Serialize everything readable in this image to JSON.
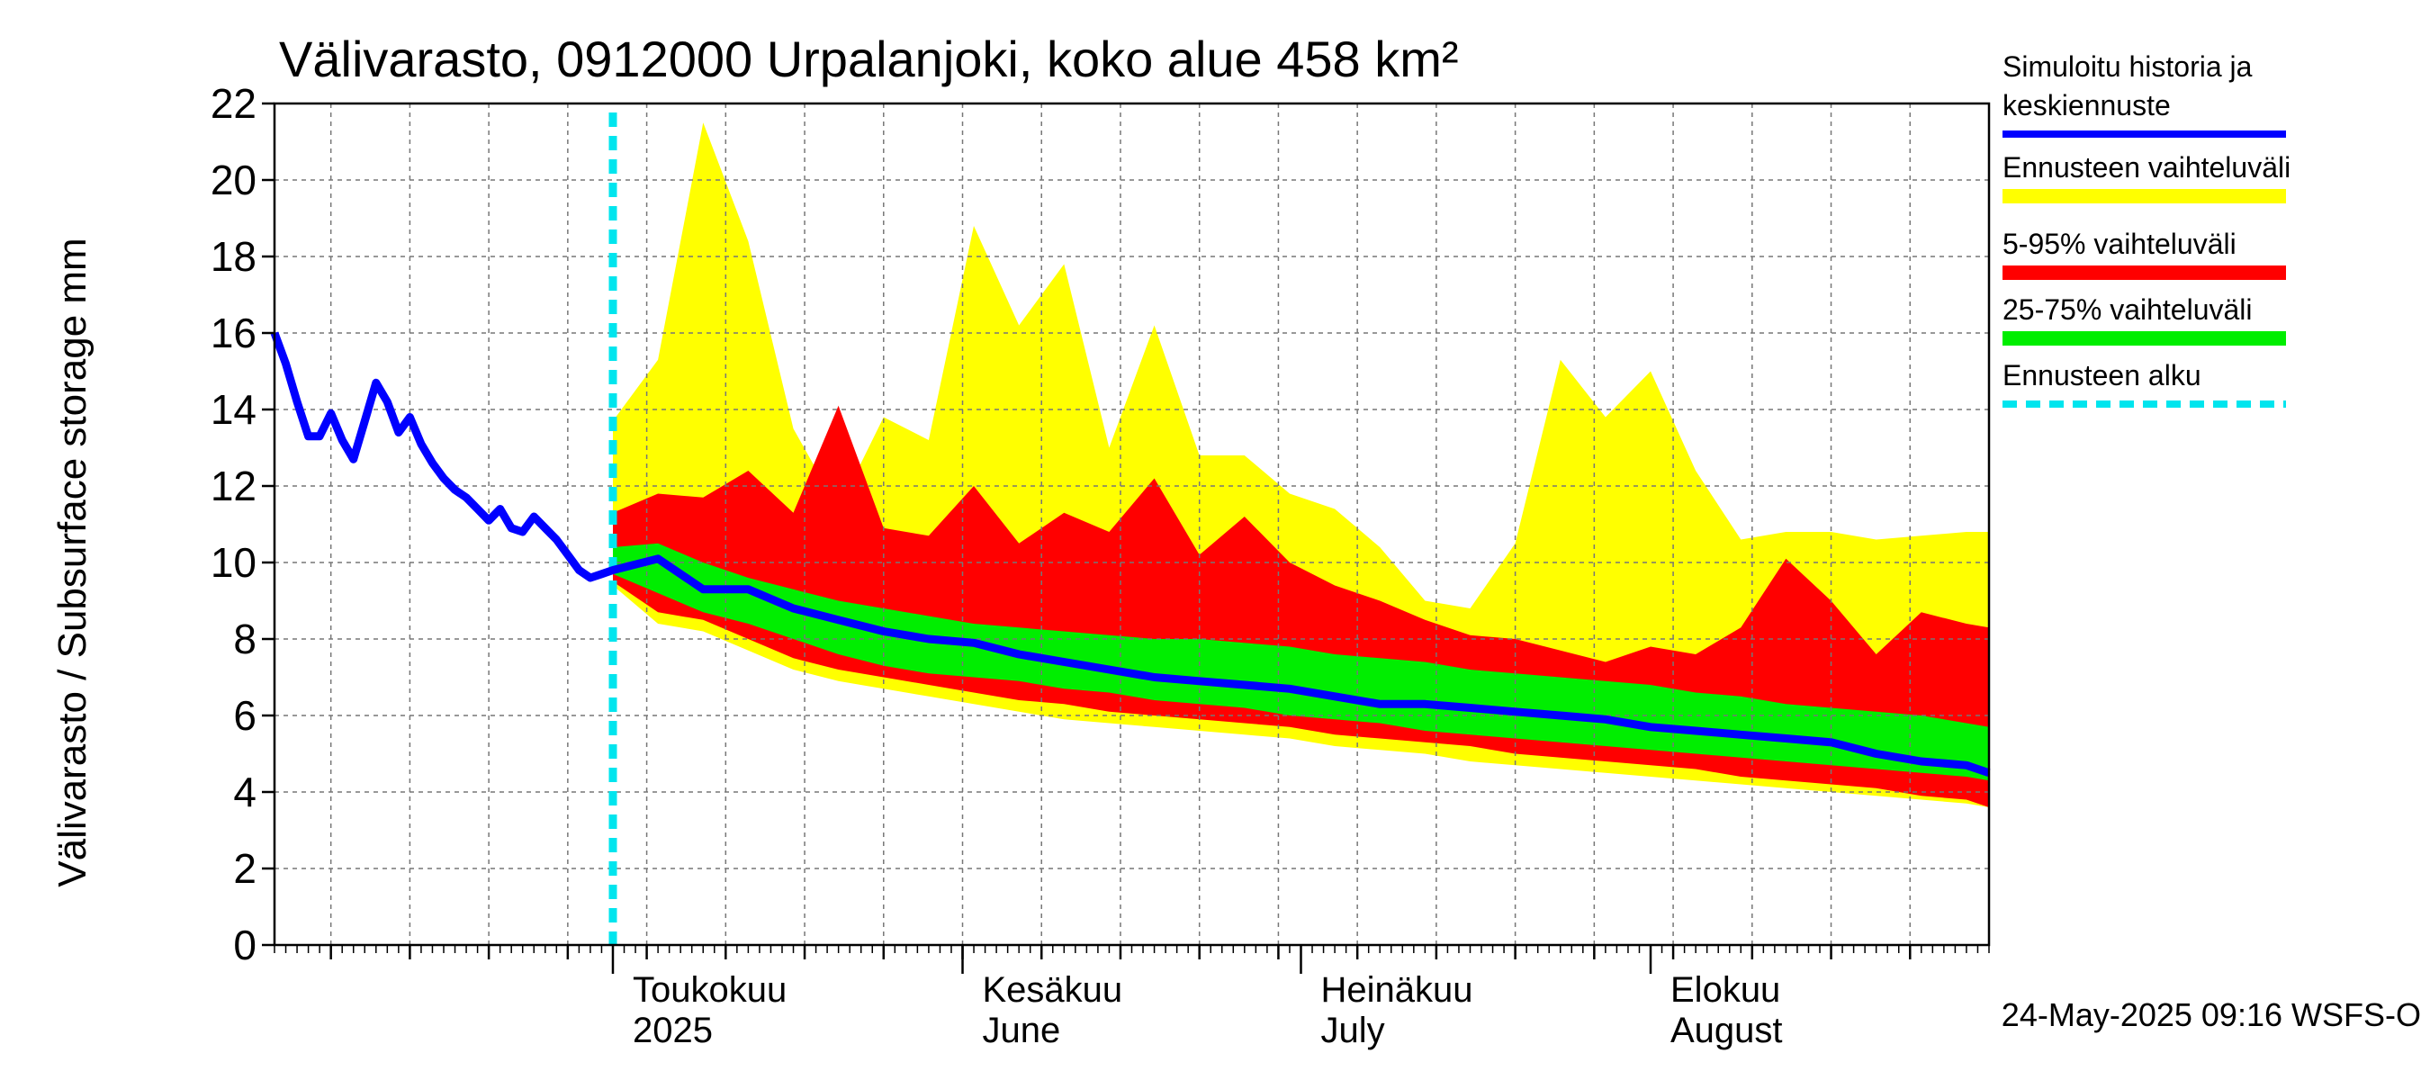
{
  "chart_data": {
    "type": "area",
    "title": "Välivarasto, 0912000 Urpalanjoki, koko alue 458 km²",
    "ylabel": "Välivarasto / Subsurface storage  mm",
    "ylim": [
      0,
      22
    ],
    "yticks": [
      0,
      2,
      4,
      6,
      8,
      10,
      12,
      14,
      16,
      18,
      20,
      22
    ],
    "xlim": [
      "2025-04-01",
      "2025-08-31"
    ],
    "grid": true,
    "months": [
      {
        "label": "Toukokuu",
        "label2": "2025",
        "start": "2025-05-01"
      },
      {
        "label": "Kesäkuu",
        "label2": "June",
        "start": "2025-06-01"
      },
      {
        "label": "Heinäkuu",
        "label2": "July",
        "start": "2025-07-01"
      },
      {
        "label": "Elokuu",
        "label2": "August",
        "start": "2025-08-01"
      }
    ],
    "forecast_start": "2025-05-01",
    "legend": {
      "placement": "right",
      "entries": [
        {
          "label": [
            "Simuloitu historia ja",
            "keskiennuste"
          ],
          "color": "#0000ff",
          "style": "line"
        },
        {
          "label": [
            "Ennusteen vaihteluväli"
          ],
          "color": "#ffff00",
          "style": "band"
        },
        {
          "label": [
            "5-95% vaihteluväli"
          ],
          "color": "#ff0000",
          "style": "band"
        },
        {
          "label": [
            "25-75% vaihteluväli"
          ],
          "color": "#00ee00",
          "style": "band"
        },
        {
          "label": [
            "Ennusteen alku"
          ],
          "color": "#00e5ee",
          "style": "dashed"
        }
      ]
    },
    "history": {
      "name": "Simuloitu historia ja keskiennuste",
      "x": [
        "2025-04-01",
        "2025-04-02",
        "2025-04-03",
        "2025-04-04",
        "2025-04-05",
        "2025-04-06",
        "2025-04-07",
        "2025-04-08",
        "2025-04-09",
        "2025-04-10",
        "2025-04-11",
        "2025-04-12",
        "2025-04-13",
        "2025-04-14",
        "2025-04-15",
        "2025-04-16",
        "2025-04-17",
        "2025-04-18",
        "2025-04-19",
        "2025-04-20",
        "2025-04-21",
        "2025-04-22",
        "2025-04-23",
        "2025-04-24",
        "2025-04-25",
        "2025-04-26",
        "2025-04-27",
        "2025-04-28",
        "2025-04-29",
        "2025-04-30",
        "2025-05-01"
      ],
      "y": [
        16.0,
        15.2,
        14.2,
        13.3,
        13.3,
        13.9,
        13.2,
        12.7,
        13.7,
        14.7,
        14.2,
        13.4,
        13.8,
        13.1,
        12.6,
        12.2,
        11.9,
        11.7,
        11.4,
        11.1,
        11.4,
        10.9,
        10.8,
        11.2,
        10.9,
        10.6,
        10.2,
        9.8,
        9.6,
        9.7,
        9.8
      ]
    },
    "forecast": {
      "x": [
        "2025-05-01",
        "2025-05-05",
        "2025-05-09",
        "2025-05-13",
        "2025-05-17",
        "2025-05-21",
        "2025-05-25",
        "2025-05-29",
        "2025-06-02",
        "2025-06-06",
        "2025-06-10",
        "2025-06-14",
        "2025-06-18",
        "2025-06-22",
        "2025-06-26",
        "2025-06-30",
        "2025-07-04",
        "2025-07-08",
        "2025-07-12",
        "2025-07-16",
        "2025-07-20",
        "2025-07-24",
        "2025-07-28",
        "2025-08-01",
        "2025-08-05",
        "2025-08-09",
        "2025-08-13",
        "2025-08-17",
        "2025-08-21",
        "2025-08-25",
        "2025-08-29",
        "2025-08-31"
      ],
      "median": [
        10.0,
        10.1,
        9.3,
        9.3,
        8.8,
        8.5,
        8.2,
        8.0,
        7.9,
        7.6,
        7.4,
        7.2,
        7.0,
        6.9,
        6.8,
        6.7,
        6.5,
        6.3,
        6.3,
        6.2,
        6.1,
        6.0,
        5.9,
        5.7,
        5.6,
        5.5,
        5.4,
        5.3,
        5.0,
        4.8,
        4.7,
        4.5
      ],
      "p25": [
        9.7,
        9.2,
        8.7,
        8.4,
        8.0,
        7.6,
        7.3,
        7.1,
        7.0,
        6.9,
        6.7,
        6.6,
        6.4,
        6.3,
        6.2,
        6.0,
        5.9,
        5.8,
        5.6,
        5.5,
        5.4,
        5.3,
        5.2,
        5.1,
        5.0,
        4.9,
        4.8,
        4.7,
        4.6,
        4.5,
        4.4,
        4.3
      ],
      "p75": [
        10.4,
        10.5,
        10.0,
        9.6,
        9.3,
        9.0,
        8.8,
        8.6,
        8.4,
        8.3,
        8.2,
        8.1,
        8.0,
        8.0,
        7.9,
        7.8,
        7.6,
        7.5,
        7.4,
        7.2,
        7.1,
        7.0,
        6.9,
        6.8,
        6.6,
        6.5,
        6.3,
        6.2,
        6.1,
        6.0,
        5.8,
        5.7
      ],
      "p5": [
        9.5,
        8.7,
        8.5,
        8.0,
        7.5,
        7.2,
        7.0,
        6.8,
        6.6,
        6.4,
        6.3,
        6.1,
        6.0,
        5.9,
        5.8,
        5.7,
        5.5,
        5.4,
        5.3,
        5.2,
        5.0,
        4.9,
        4.8,
        4.7,
        4.6,
        4.4,
        4.3,
        4.2,
        4.1,
        3.9,
        3.8,
        3.6
      ],
      "p95": [
        11.3,
        11.8,
        11.7,
        12.4,
        11.3,
        14.1,
        10.9,
        10.7,
        12.0,
        10.5,
        11.3,
        10.8,
        12.2,
        10.2,
        11.2,
        10.0,
        9.4,
        9.0,
        8.5,
        8.1,
        8.0,
        7.7,
        7.4,
        7.8,
        7.6,
        8.3,
        10.1,
        9.0,
        7.6,
        8.7,
        8.4,
        8.3
      ],
      "min": [
        9.4,
        8.4,
        8.2,
        7.7,
        7.2,
        6.9,
        6.7,
        6.5,
        6.3,
        6.1,
        5.9,
        5.8,
        5.7,
        5.6,
        5.5,
        5.4,
        5.2,
        5.1,
        5.0,
        4.8,
        4.7,
        4.6,
        4.5,
        4.4,
        4.3,
        4.2,
        4.1,
        4.0,
        3.9,
        3.8,
        3.7,
        3.6
      ],
      "max": [
        13.7,
        15.3,
        21.5,
        18.4,
        13.5,
        11.4,
        13.8,
        13.2,
        18.8,
        16.2,
        17.8,
        13.0,
        16.2,
        12.8,
        12.8,
        11.8,
        11.4,
        10.4,
        9.0,
        8.8,
        10.5,
        15.3,
        13.8,
        15.0,
        12.4,
        10.6,
        10.8,
        10.8,
        10.6,
        10.7,
        10.8,
        10.8
      ]
    },
    "footer": "24-May-2025 09:16 WSFS-O"
  }
}
